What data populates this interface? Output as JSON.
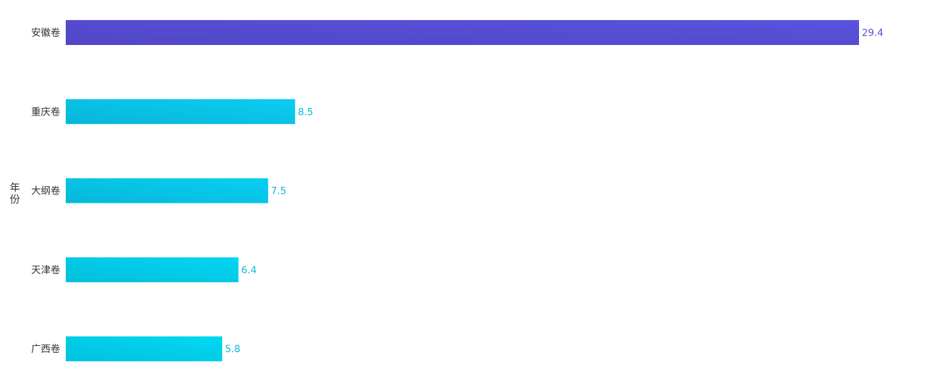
{
  "chart_data": {
    "type": "bar",
    "orientation": "horizontal",
    "title": "",
    "xlabel": "",
    "ylabel": "年份",
    "categories": [
      "安徽卷",
      "重庆卷",
      "大纲卷",
      "天津卷",
      "广西卷"
    ],
    "values": [
      29.4,
      8.5,
      7.5,
      6.4,
      5.8
    ],
    "data_labels": [
      "29.4",
      "8.5",
      "7.5",
      "6.4",
      "5.8"
    ],
    "grid": false,
    "legend": "none",
    "colors": [
      {
        "from": "#5046c6",
        "to": "#5b52dd",
        "label": "#5a4fd8"
      },
      {
        "from": "#08b6d8",
        "to": "#0bcdf2",
        "label": "#0bbcd8"
      },
      {
        "from": "#06b8d8",
        "to": "#08cff2",
        "label": "#0bbcd8"
      },
      {
        "from": "#02bfdc",
        "to": "#03d5f2",
        "label": "#0bbcd8"
      },
      {
        "from": "#00c2dd",
        "to": "#02d8f3",
        "label": "#0bbcd8"
      }
    ]
  }
}
